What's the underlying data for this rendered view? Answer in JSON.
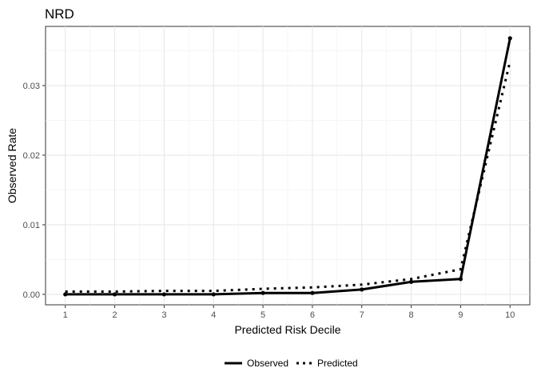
{
  "chart_data": {
    "type": "line",
    "title": "NRD",
    "xlabel": "Predicted Risk Decile",
    "ylabel": "Observed Rate",
    "x": [
      1,
      2,
      3,
      4,
      5,
      6,
      7,
      8,
      9,
      10
    ],
    "xlim": [
      0.6,
      10.4
    ],
    "ylim": [
      -0.0015,
      0.0385
    ],
    "xticks": [
      1,
      2,
      3,
      4,
      5,
      6,
      7,
      8,
      9,
      10
    ],
    "yticks": [
      0,
      0.01,
      0.02,
      0.03
    ],
    "ytick_labels": [
      "0.00",
      "0.01",
      "0.02",
      "0.03"
    ],
    "grid": true,
    "legend_position": "bottom",
    "series": [
      {
        "name": "Observed",
        "linetype": "solid",
        "markers": true,
        "color": "#000000",
        "values": [
          0.0,
          0.0,
          0.0,
          0.0,
          0.0002,
          0.0002,
          0.0007,
          0.0018,
          0.0022,
          0.0368
        ]
      },
      {
        "name": "Predicted",
        "linetype": "dotted",
        "markers": false,
        "color": "#000000",
        "values": [
          0.0004,
          0.0004,
          0.0005,
          0.0005,
          0.0008,
          0.001,
          0.0014,
          0.0022,
          0.0036,
          0.0335
        ]
      }
    ]
  }
}
